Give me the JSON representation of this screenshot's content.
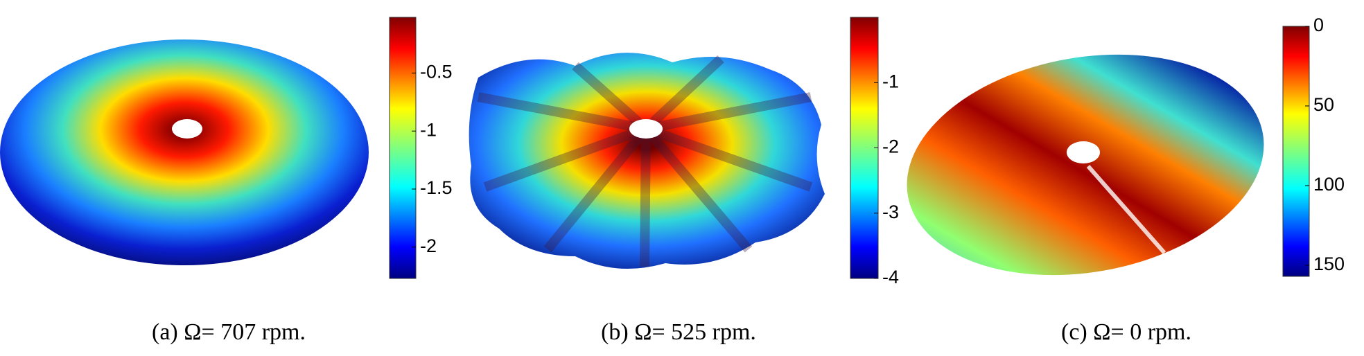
{
  "panels": [
    {
      "caption": "(a)  Ω= 707 rpm.",
      "colorbar": {
        "lim": [
          -2.27,
          -0.02
        ],
        "ticks": [
          -0.5,
          -1,
          -1.5,
          -2
        ]
      }
    },
    {
      "caption": "(b)  Ω= 525 rpm.",
      "colorbar": {
        "lim": [
          -4,
          0
        ],
        "ticks": [
          -1,
          -2,
          -3,
          -4
        ]
      }
    },
    {
      "caption": "(c)  Ω= 0 rpm.",
      "colorbar": {
        "lim": [
          157,
          0
        ],
        "ticks": [
          0,
          50,
          100,
          150
        ]
      }
    }
  ]
}
